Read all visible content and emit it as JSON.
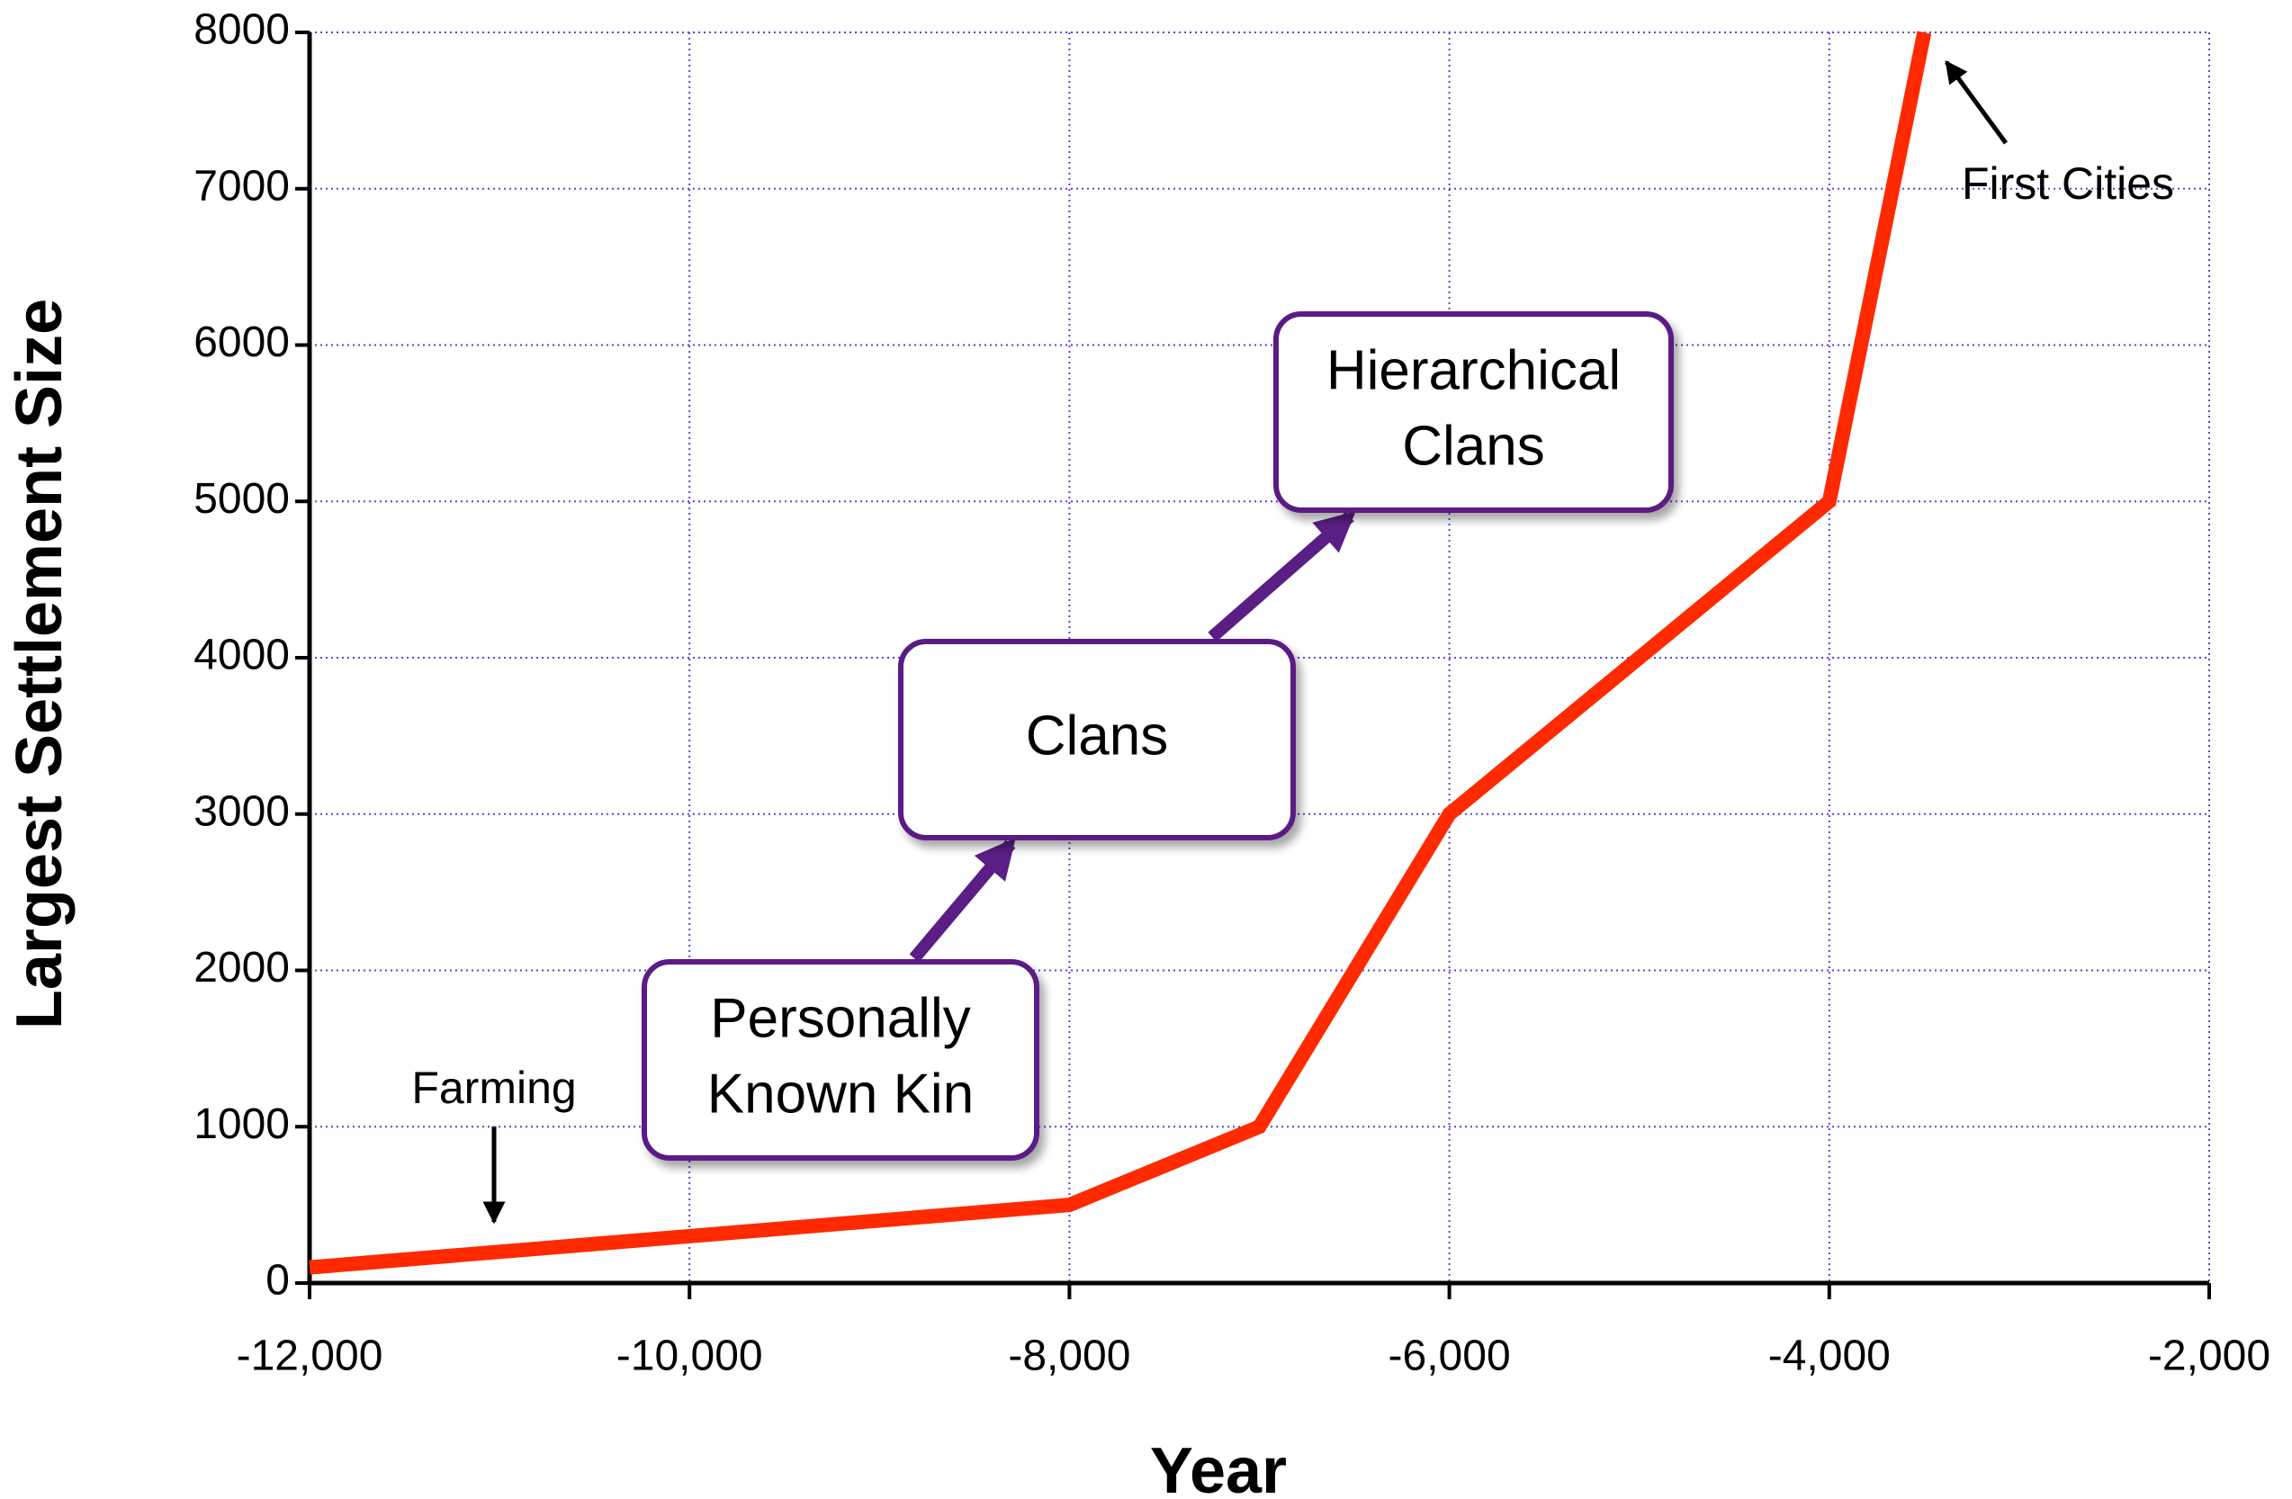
{
  "chart_data": {
    "type": "line",
    "x_label": "Year",
    "y_label": "Largest Settlement Size",
    "x": [
      -12000,
      -8000,
      -7000,
      -6000,
      -4000,
      -3500
    ],
    "series": [
      {
        "color": "#ff2a00",
        "values": [
          100,
          500,
          1000,
          3000,
          5000,
          8000
        ]
      }
    ],
    "xlim": [
      -12000,
      -2000
    ],
    "xticks": [
      {
        "value": -12000,
        "label": "-12,000"
      },
      {
        "value": -10000,
        "label": "-10,000"
      },
      {
        "value": -8000,
        "label": "-8,000"
      },
      {
        "value": -6000,
        "label": "-6,000"
      },
      {
        "value": -4000,
        "label": "-4,000"
      },
      {
        "value": -2000,
        "label": "-2,000"
      }
    ],
    "ylim": [
      0,
      8000
    ],
    "yticks": [
      0,
      1000,
      2000,
      3000,
      4000,
      5000,
      6000,
      7000,
      8000
    ],
    "grid": true,
    "annotations": [
      {
        "text": "Farming"
      },
      {
        "text": "First Cities"
      },
      {
        "lines": [
          "Personally",
          "Known Kin"
        ]
      },
      {
        "lines": [
          "Clans"
        ]
      },
      {
        "lines": [
          "Hierarchical",
          "Clans"
        ]
      }
    ]
  }
}
